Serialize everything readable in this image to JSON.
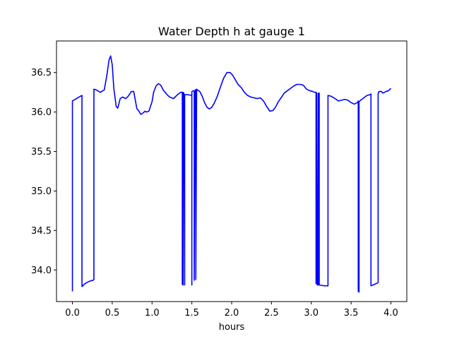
{
  "chart_data": {
    "type": "line",
    "title": "Water Depth h at gauge 1",
    "xlabel": "hours",
    "ylabel": "",
    "xlim": [
      -0.2,
      4.2
    ],
    "ylim": [
      33.6,
      36.9
    ],
    "xticks": [
      0.0,
      0.5,
      1.0,
      1.5,
      2.0,
      2.5,
      3.0,
      3.5,
      4.0
    ],
    "xtick_labels": [
      "0.0",
      "0.5",
      "1.0",
      "1.5",
      "2.0",
      "2.5",
      "3.0",
      "3.5",
      "4.0"
    ],
    "yticks": [
      34.0,
      34.5,
      35.0,
      35.5,
      36.0,
      36.5
    ],
    "ytick_labels": [
      "34.0",
      "34.5",
      "35.0",
      "35.5",
      "36.0",
      "36.5"
    ],
    "grid": false,
    "legend": "none",
    "series": [
      {
        "color": "#0000ff",
        "x": [
          0.0,
          0.0,
          0.05,
          0.1,
          0.12,
          0.12,
          0.16,
          0.22,
          0.26,
          0.27,
          0.27,
          0.3,
          0.35,
          0.4,
          0.43,
          0.46,
          0.48,
          0.5,
          0.52,
          0.55,
          0.57,
          0.6,
          0.63,
          0.67,
          0.7,
          0.74,
          0.77,
          0.79,
          0.81,
          0.83,
          0.86,
          0.89,
          0.91,
          0.93,
          0.96,
          1.0,
          1.02,
          1.05,
          1.08,
          1.11,
          1.14,
          1.18,
          1.22,
          1.27,
          1.32,
          1.36,
          1.38,
          1.38,
          1.39,
          1.39,
          1.4,
          1.41,
          1.41,
          1.45,
          1.5,
          1.5,
          1.5,
          1.52,
          1.53,
          1.53,
          1.54,
          1.55,
          1.55,
          1.56,
          1.57,
          1.57,
          1.6,
          1.63,
          1.66,
          1.69,
          1.72,
          1.75,
          1.78,
          1.82,
          1.86,
          1.9,
          1.94,
          1.98,
          2.01,
          2.04,
          2.08,
          2.12,
          2.16,
          2.2,
          2.24,
          2.28,
          2.32,
          2.36,
          2.4,
          2.44,
          2.48,
          2.52,
          2.55,
          2.58,
          2.62,
          2.66,
          2.7,
          2.74,
          2.78,
          2.82,
          2.86,
          2.9,
          2.94,
          2.98,
          3.02,
          3.04,
          3.06,
          3.06,
          3.07,
          3.07,
          3.08,
          3.09,
          3.09,
          3.1,
          3.1,
          3.16,
          3.21,
          3.21,
          3.25,
          3.3,
          3.34,
          3.38,
          3.42,
          3.46,
          3.5,
          3.54,
          3.56,
          3.58,
          3.59,
          3.59,
          3.6,
          3.6,
          3.62,
          3.66,
          3.7,
          3.74,
          3.75,
          3.75,
          3.8,
          3.84,
          3.84,
          3.85,
          3.88,
          3.9,
          3.94,
          3.97,
          4.0
        ],
        "y": [
          33.73,
          36.14,
          36.17,
          36.2,
          36.21,
          33.79,
          33.83,
          33.86,
          33.87,
          33.88,
          36.29,
          36.28,
          36.25,
          36.28,
          36.45,
          36.66,
          36.71,
          36.6,
          36.3,
          36.07,
          36.05,
          36.17,
          36.19,
          36.17,
          36.2,
          36.26,
          36.26,
          36.15,
          36.04,
          36.02,
          35.97,
          35.99,
          36.01,
          36.0,
          36.01,
          36.13,
          36.25,
          36.33,
          36.36,
          36.34,
          36.28,
          36.23,
          36.19,
          36.17,
          36.22,
          36.25,
          36.25,
          33.82,
          33.81,
          36.25,
          36.24,
          33.81,
          36.22,
          36.22,
          36.21,
          33.81,
          36.26,
          36.27,
          36.26,
          33.87,
          36.28,
          36.28,
          33.88,
          36.29,
          36.28,
          36.28,
          36.26,
          36.2,
          36.12,
          36.06,
          36.04,
          36.06,
          36.11,
          36.2,
          36.32,
          36.43,
          36.5,
          36.5,
          36.47,
          36.42,
          36.35,
          36.31,
          36.25,
          36.21,
          36.19,
          36.18,
          36.17,
          36.18,
          36.14,
          36.07,
          36.01,
          36.02,
          36.06,
          36.12,
          36.18,
          36.24,
          36.27,
          36.3,
          36.33,
          36.35,
          36.35,
          36.34,
          36.29,
          36.27,
          36.26,
          36.25,
          36.25,
          33.83,
          36.24,
          33.82,
          33.81,
          36.24,
          33.81,
          36.24,
          33.81,
          33.8,
          33.8,
          36.21,
          36.2,
          36.17,
          36.14,
          36.15,
          36.16,
          36.15,
          36.12,
          36.1,
          36.11,
          36.12,
          36.14,
          33.73,
          33.72,
          36.13,
          36.15,
          36.18,
          36.21,
          36.22,
          36.23,
          33.8,
          33.82,
          33.84,
          36.23,
          36.26,
          36.26,
          36.24,
          36.26,
          36.27,
          36.3
        ]
      }
    ]
  }
}
